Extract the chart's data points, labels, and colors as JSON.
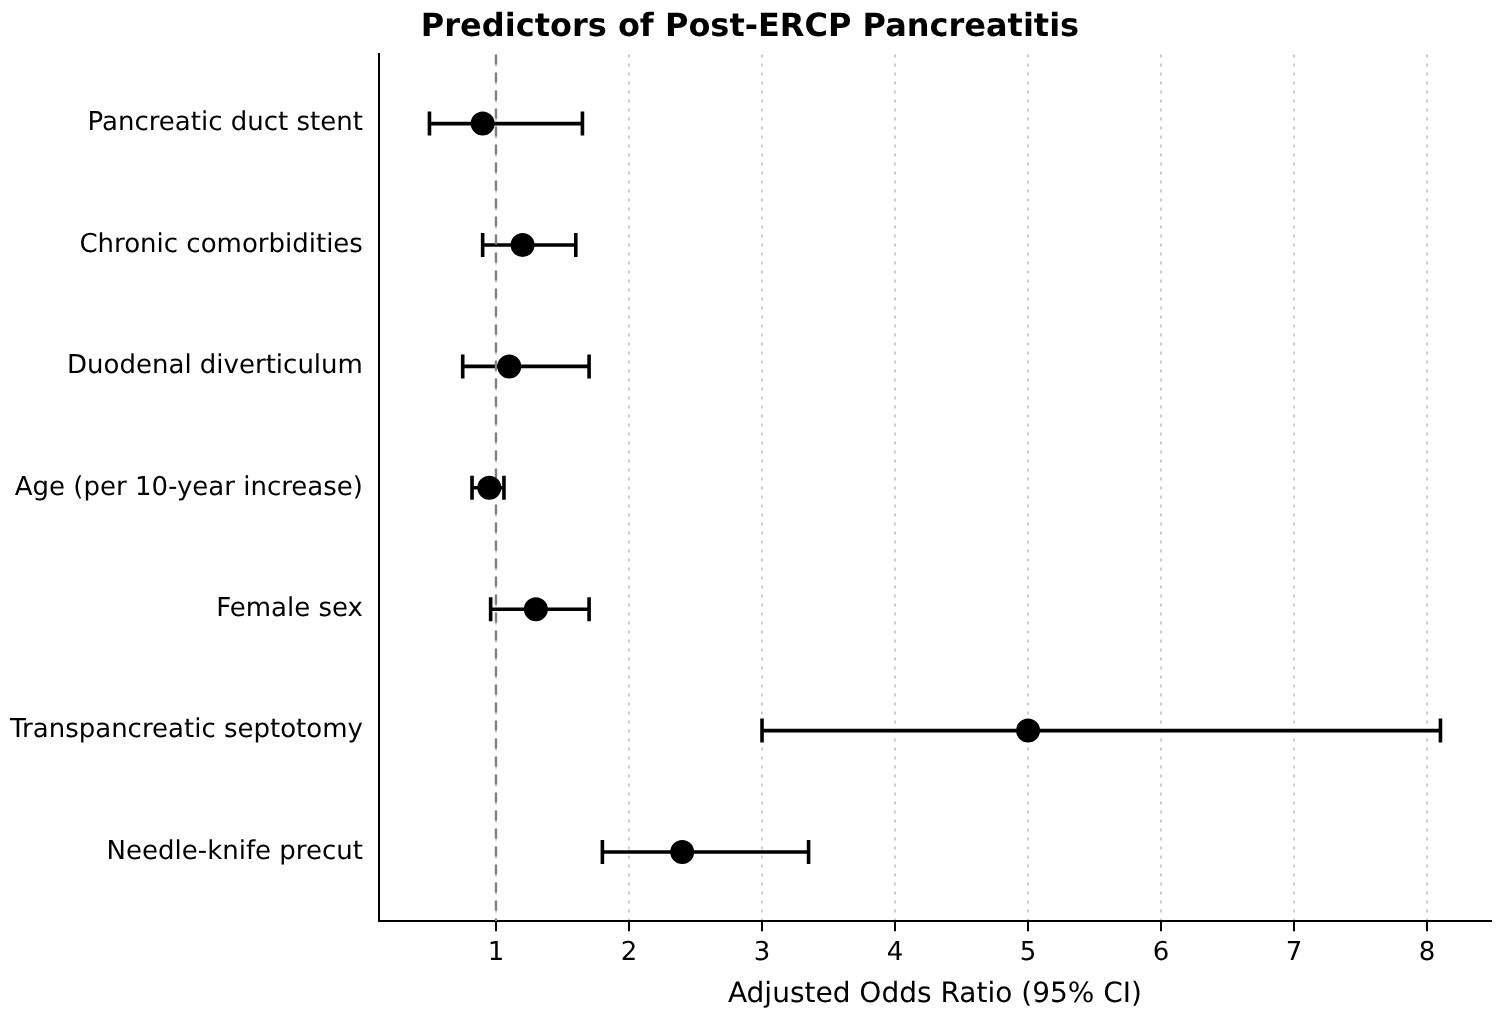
{
  "chart_data": {
    "type": "scatter",
    "orientation": "horizontal",
    "title": "Predictors of Post-ERCP Pancreatitis",
    "xlabel": "Adjusted Odds Ratio (95% CI)",
    "categories": [
      "Pancreatic duct stent",
      "Chronic comorbidities",
      "Duodenal diverticulum",
      "Age (per 10-year increase)",
      "Female sex",
      "Transpancreatic septotomy",
      "Needle-knife precut"
    ],
    "values": [
      0.9,
      1.2,
      1.1,
      0.95,
      1.3,
      5.0,
      2.4
    ],
    "errors": [
      [
        0.5,
        1.65
      ],
      [
        0.9,
        1.6
      ],
      [
        0.75,
        1.7
      ],
      [
        0.82,
        1.06
      ],
      [
        0.96,
        1.7
      ],
      [
        3.0,
        8.1
      ],
      [
        1.8,
        3.35
      ]
    ],
    "color": "#000000",
    "marker": "circle",
    "xlim": [
      0.12,
      8.48
    ],
    "xticks": [
      1,
      2,
      3,
      4,
      5,
      6,
      7,
      8
    ],
    "ref_lines": [
      {
        "axis": "x",
        "value": 1,
        "color": "#808080",
        "line_style": "dashed"
      }
    ],
    "grid": "x",
    "legend": false
  }
}
